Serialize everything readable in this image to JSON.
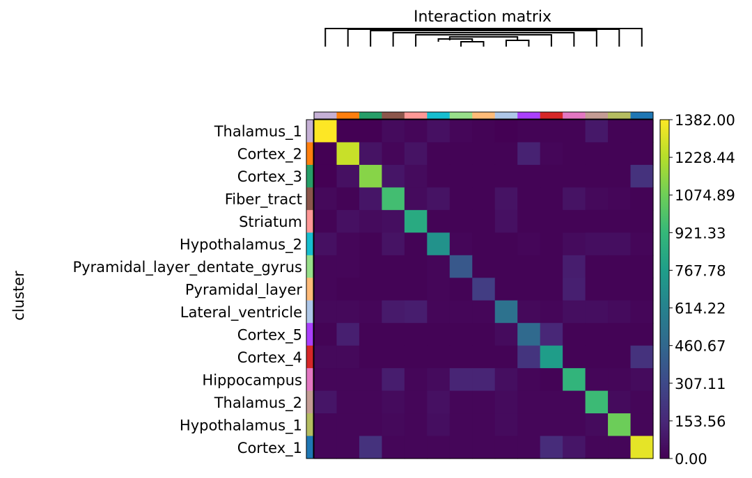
{
  "chart_data": {
    "type": "heatmap",
    "title": "Interaction matrix",
    "ylabel": "cluster",
    "rows": [
      "Thalamus_1",
      "Cortex_2",
      "Cortex_3",
      "Fiber_tract",
      "Striatum",
      "Hypothalamus_2",
      "Pyramidal_layer_dentate_gyrus",
      "Pyramidal_layer",
      "Lateral_ventricle",
      "Cortex_5",
      "Cortex_4",
      "Hippocampus",
      "Thalamus_2",
      "Hypothalamus_1",
      "Cortex_1"
    ],
    "columns": [
      "Thalamus_1",
      "Cortex_2",
      "Cortex_3",
      "Fiber_tract",
      "Striatum",
      "Hypothalamus_2",
      "Pyramidal_layer_dentate_gyrus",
      "Pyramidal_layer",
      "Lateral_ventricle",
      "Cortex_5",
      "Cortex_4",
      "Hippocampus",
      "Thalamus_2",
      "Hypothalamus_1",
      "Cortex_1"
    ],
    "cluster_colors": [
      "#c5b0d5",
      "#ff7f0e",
      "#279e68",
      "#8c564b",
      "#ff9896",
      "#17becf",
      "#98df8a",
      "#ffbb78",
      "#aec7e8",
      "#aa40fc",
      "#d62728",
      "#e377c2",
      "#c49c94",
      "#b5bd61",
      "#1f77b4"
    ],
    "values": [
      [
        1382,
        0,
        0,
        40,
        20,
        60,
        20,
        10,
        0,
        10,
        10,
        10,
        90,
        10,
        10
      ],
      [
        0,
        1270,
        70,
        20,
        70,
        10,
        10,
        10,
        10,
        130,
        20,
        10,
        10,
        10,
        10
      ],
      [
        0,
        60,
        1130,
        80,
        40,
        10,
        10,
        10,
        10,
        10,
        10,
        10,
        10,
        10,
        200
      ],
      [
        30,
        10,
        80,
        960,
        40,
        70,
        10,
        10,
        70,
        10,
        10,
        70,
        30,
        20,
        10
      ],
      [
        10,
        60,
        40,
        50,
        840,
        10,
        10,
        10,
        60,
        10,
        10,
        10,
        10,
        10,
        10
      ],
      [
        60,
        20,
        10,
        70,
        10,
        700,
        20,
        10,
        10,
        20,
        10,
        40,
        50,
        50,
        20
      ],
      [
        20,
        20,
        10,
        10,
        10,
        20,
        380,
        10,
        10,
        10,
        10,
        110,
        10,
        10,
        10
      ],
      [
        20,
        10,
        10,
        10,
        10,
        20,
        10,
        250,
        10,
        10,
        10,
        120,
        10,
        10,
        10
      ],
      [
        30,
        30,
        20,
        100,
        110,
        20,
        20,
        20,
        520,
        30,
        20,
        50,
        50,
        40,
        20
      ],
      [
        10,
        120,
        10,
        10,
        10,
        10,
        10,
        10,
        40,
        470,
        150,
        10,
        10,
        10,
        10
      ],
      [
        30,
        30,
        10,
        10,
        10,
        10,
        10,
        10,
        10,
        210,
        760,
        10,
        10,
        10,
        200
      ],
      [
        20,
        20,
        20,
        110,
        20,
        40,
        140,
        140,
        50,
        20,
        10,
        900,
        20,
        20,
        40
      ],
      [
        80,
        20,
        20,
        40,
        20,
        60,
        20,
        20,
        40,
        20,
        20,
        20,
        940,
        40,
        20
      ],
      [
        20,
        20,
        20,
        30,
        20,
        50,
        20,
        20,
        40,
        20,
        20,
        20,
        40,
        1070,
        20
      ],
      [
        20,
        20,
        200,
        20,
        20,
        20,
        20,
        20,
        20,
        20,
        170,
        80,
        20,
        20,
        1330
      ]
    ],
    "vmin": 0,
    "vmax": 1382,
    "colorbar_ticks": [
      "1382.00",
      "1228.44",
      "1074.89",
      "921.33",
      "767.78",
      "614.22",
      "460.67",
      "307.11",
      "153.56",
      "0.00"
    ],
    "colormap": "viridis",
    "dendrogram": "top"
  }
}
